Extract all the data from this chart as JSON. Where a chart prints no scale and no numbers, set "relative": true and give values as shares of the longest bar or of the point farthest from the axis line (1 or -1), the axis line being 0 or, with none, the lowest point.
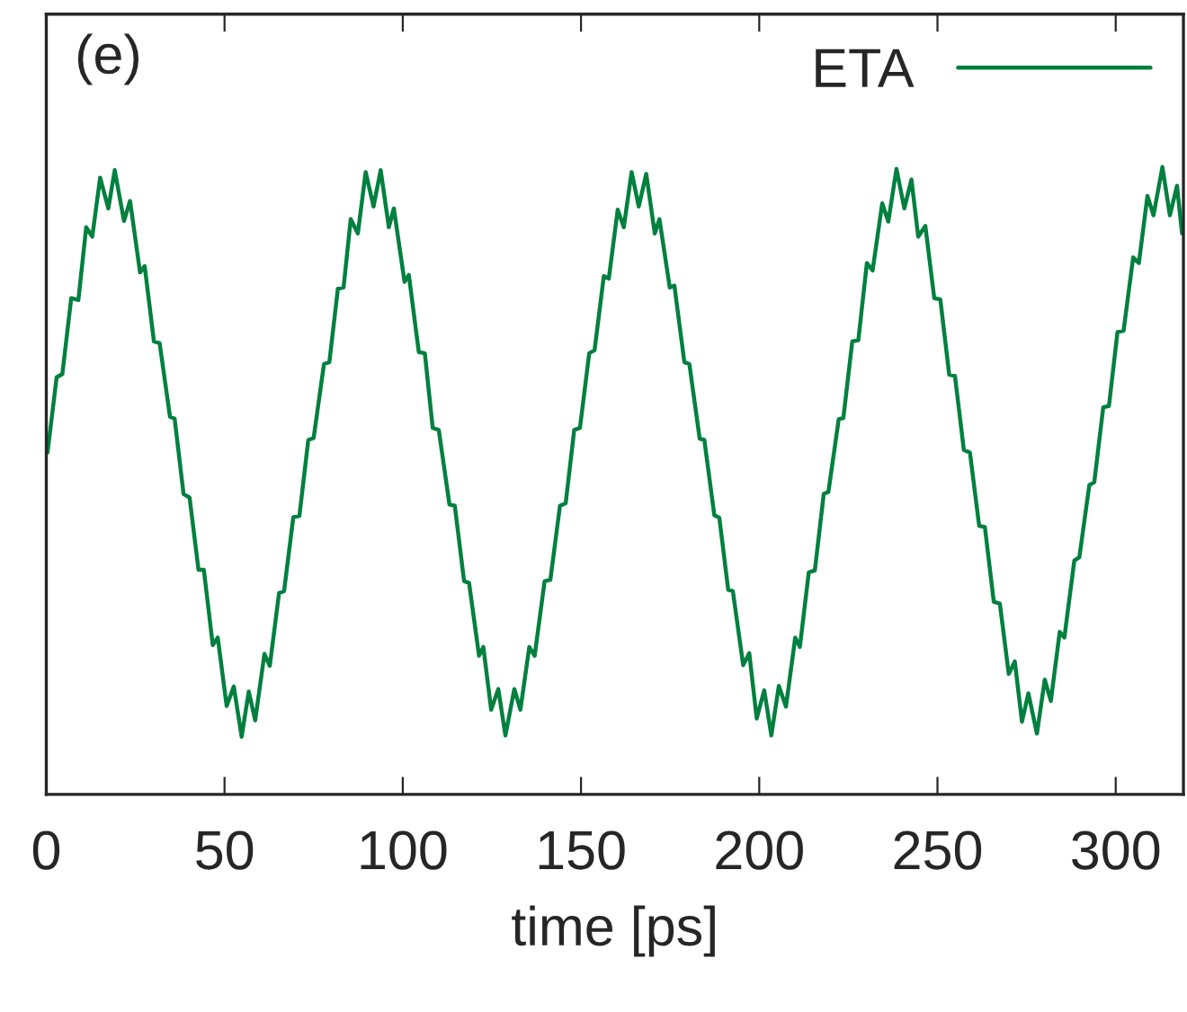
{
  "chart_data": {
    "type": "line",
    "relative": true,
    "xlabel": "time [ps]",
    "annotations": [
      "(e)"
    ],
    "legend": "top right",
    "grid": false,
    "marker": "none",
    "line_style": "solid",
    "xlim": [
      0,
      319
    ],
    "xticks": [
      0,
      50,
      100,
      150,
      200,
      250,
      300
    ],
    "series": [
      {
        "name": "ETA",
        "color": "#00803f",
        "x": [
          0.35,
          2.9,
          4.5,
          7.0,
          9.0,
          11.2,
          12.9,
          15.1,
          17.4,
          19.2,
          21.8,
          23.5,
          26.3,
          27.6,
          30.2,
          31.8,
          34.7,
          36.0,
          38.5,
          40.2,
          42.7,
          44.2,
          46.7,
          48.1,
          50.6,
          52.6,
          54.8,
          56.8,
          58.6,
          61.2,
          62.7,
          65.3,
          66.7,
          69.3,
          71.0,
          73.5,
          75.0,
          77.9,
          79.4,
          81.8,
          83.4,
          85.4,
          87.4,
          89.6,
          91.8,
          93.8,
          96.1,
          97.5,
          100.5,
          101.7,
          104.5,
          106.2,
          108.4,
          110.1,
          113.1,
          114.6,
          117.2,
          118.6,
          121.4,
          122.6,
          124.8,
          126.8,
          128.8,
          131.3,
          133.0,
          135.5,
          137.0,
          139.8,
          141.4,
          144.1,
          145.7,
          148.1,
          149.7,
          152.3,
          153.8,
          156.4,
          157.8,
          160.3,
          162.0,
          164.2,
          166.2,
          168.3,
          170.7,
          172.0,
          174.9,
          176.2,
          179.0,
          180.4,
          183.3,
          184.6,
          187.4,
          188.8,
          191.3,
          192.6,
          195.5,
          197.2,
          199.3,
          201.4,
          203.4,
          205.5,
          207.5,
          210.1,
          211.4,
          213.9,
          215.6,
          218.1,
          219.4,
          222.3,
          223.6,
          226.1,
          227.8,
          230.2,
          231.8,
          234.5,
          236.2,
          238.5,
          240.7,
          242.7,
          244.6,
          246.6,
          249.1,
          250.8,
          253.3,
          254.9,
          257.4,
          259.1,
          261.7,
          263.3,
          265.8,
          267.5,
          270.0,
          271.7,
          273.7,
          275.5,
          277.9,
          280.1,
          281.8,
          284.3,
          285.6,
          288.4,
          289.8,
          292.6,
          294.0,
          296.5,
          298.1,
          300.5,
          302.2,
          304.9,
          306.5,
          308.9,
          310.6,
          313.1,
          315.2,
          317.2,
          318.6
        ],
        "values": [
          0.545,
          0.665,
          0.67,
          0.791,
          0.788,
          0.904,
          0.889,
          0.983,
          0.934,
          0.995,
          0.914,
          0.946,
          0.832,
          0.842,
          0.722,
          0.719,
          0.602,
          0.599,
          0.479,
          0.473,
          0.358,
          0.358,
          0.238,
          0.25,
          0.141,
          0.172,
          0.092,
          0.164,
          0.118,
          0.224,
          0.205,
          0.321,
          0.324,
          0.442,
          0.444,
          0.565,
          0.568,
          0.686,
          0.689,
          0.806,
          0.808,
          0.917,
          0.894,
          0.992,
          0.937,
          0.995,
          0.904,
          0.934,
          0.817,
          0.828,
          0.705,
          0.703,
          0.584,
          0.581,
          0.462,
          0.46,
          0.34,
          0.337,
          0.221,
          0.235,
          0.135,
          0.168,
          0.094,
          0.168,
          0.135,
          0.235,
          0.221,
          0.34,
          0.342,
          0.46,
          0.464,
          0.581,
          0.584,
          0.703,
          0.708,
          0.826,
          0.822,
          0.932,
          0.904,
          0.992,
          0.937,
          0.989,
          0.894,
          0.917,
          0.808,
          0.811,
          0.689,
          0.686,
          0.567,
          0.565,
          0.445,
          0.441,
          0.326,
          0.324,
          0.206,
          0.225,
          0.121,
          0.166,
          0.094,
          0.173,
          0.14,
          0.25,
          0.235,
          0.354,
          0.357,
          0.479,
          0.482,
          0.598,
          0.6,
          0.722,
          0.724,
          0.847,
          0.835,
          0.942,
          0.913,
          0.997,
          0.934,
          0.98,
          0.889,
          0.906,
          0.791,
          0.789,
          0.669,
          0.667,
          0.549,
          0.545,
          0.428,
          0.426,
          0.307,
          0.304,
          0.192,
          0.212,
          0.116,
          0.161,
          0.097,
          0.183,
          0.149,
          0.259,
          0.25,
          0.373,
          0.378,
          0.493,
          0.498,
          0.617,
          0.619,
          0.737,
          0.739,
          0.856,
          0.847,
          0.954,
          0.923,
          1.0,
          0.923,
          0.97,
          0.894
        ]
      }
    ]
  }
}
